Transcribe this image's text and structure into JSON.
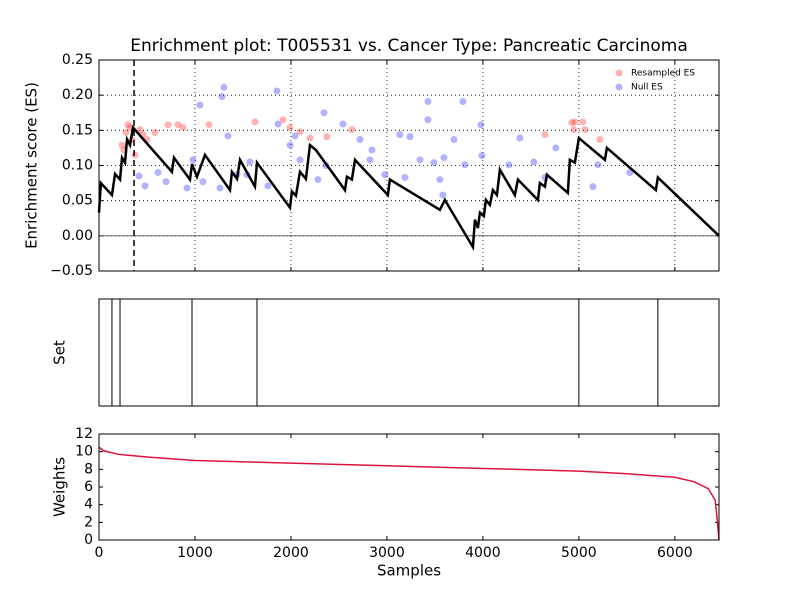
{
  "chart_data": [
    {
      "type": "line",
      "title": "Enrichment plot: T005531 vs. Cancer Type: Pancreatic Carcinoma",
      "ylabel": "Enrichment score (ES)",
      "x": [
        0,
        20,
        135,
        167,
        219,
        240,
        271,
        292,
        323,
        354,
        760,
        781,
        948,
        969,
        1021,
        1104,
        1365,
        1385,
        1438,
        1469,
        1625,
        1646,
        1990,
        2010,
        2052,
        2094,
        2156,
        2198,
        2260,
        2563,
        2583,
        2635,
        2667,
        3010,
        3031,
        3552,
        3604,
        3896,
        3917,
        3948,
        3969,
        4010,
        4031,
        4073,
        4104,
        4146,
        4177,
        4333,
        4365,
        4573,
        4594,
        4646,
        4667,
        4885,
        4906,
        4958,
        5000,
        5271,
        5292,
        5802,
        5823,
        6460
      ],
      "values": [
        0.033,
        0.075,
        0.058,
        0.088,
        0.08,
        0.111,
        0.104,
        0.137,
        0.129,
        0.154,
        0.091,
        0.111,
        0.08,
        0.102,
        0.084,
        0.115,
        0.065,
        0.091,
        0.081,
        0.108,
        0.07,
        0.104,
        0.04,
        0.063,
        0.057,
        0.091,
        0.081,
        0.129,
        0.122,
        0.065,
        0.084,
        0.08,
        0.108,
        0.058,
        0.08,
        0.037,
        0.051,
        -0.016,
        0.023,
        0.011,
        0.033,
        0.028,
        0.051,
        0.044,
        0.065,
        0.058,
        0.094,
        0.058,
        0.08,
        0.051,
        0.075,
        0.07,
        0.087,
        0.061,
        0.108,
        0.104,
        0.139,
        0.108,
        0.125,
        0.065,
        0.083,
        0.0
      ],
      "color": "#000000",
      "scatter": [
        {
          "name": "Resampled ES",
          "color": "#ff0000",
          "x": [
            260,
            281,
            302,
            323,
            344,
            240,
            375,
            427,
            458,
            500,
            583,
            719,
            823,
            875,
            1146,
            1625,
            1917,
            1990,
            2094,
            2198,
            2375,
            2635,
            4646,
            4927,
            4948,
            4958,
            5042,
            5063,
            5219
          ],
          "values": [
            0.122,
            0.147,
            0.158,
            0.154,
            0.137,
            0.129,
            0.115,
            0.151,
            0.144,
            0.137,
            0.147,
            0.158,
            0.158,
            0.154,
            0.158,
            0.162,
            0.165,
            0.154,
            0.148,
            0.139,
            0.141,
            0.151,
            0.144,
            0.161,
            0.151,
            0.162,
            0.162,
            0.151,
            0.137
          ]
        },
        {
          "name": "Null ES",
          "color": "#0000ff",
          "x": [
            1052,
            1281,
            1302,
            1854,
            3427,
            3792,
            3979,
            2344,
            1344,
            1865,
            2042,
            2542,
            3135,
            3240,
            3427,
            3594,
            3490,
            4385,
            4760,
            5198,
            417,
            479,
            615,
            698,
            917,
            1083,
            1260,
            1542,
            1760,
            1573,
            2094,
            2281,
            2365,
            2844,
            2823,
            2979,
            3188,
            3344,
            3552,
            3583,
            3813,
            3990,
            4271,
            4531,
            4646,
            5146,
            5531,
            979,
            1438,
            1990,
            2719,
            3698
          ],
          "values": [
            0.186,
            0.198,
            0.211,
            0.206,
            0.191,
            0.191,
            0.158,
            0.175,
            0.142,
            0.159,
            0.142,
            0.159,
            0.144,
            0.141,
            0.165,
            0.111,
            0.104,
            0.139,
            0.125,
            0.101,
            0.085,
            0.071,
            0.09,
            0.077,
            0.068,
            0.077,
            0.068,
            0.087,
            0.071,
            0.105,
            0.108,
            0.08,
            0.1,
            0.122,
            0.108,
            0.087,
            0.083,
            0.108,
            0.08,
            0.058,
            0.101,
            0.114,
            0.101,
            0.105,
            0.083,
            0.07,
            0.09,
            0.108,
            0.087,
            0.129,
            0.137,
            0.137
          ]
        }
      ],
      "vline": 365,
      "xlim": [
        0,
        6460
      ],
      "xticks": [
        1000,
        2000,
        3000,
        4000,
        5000,
        6000
      ],
      "show_xticklabels": false,
      "ylim": [
        -0.05,
        0.25
      ],
      "yticks": [
        {
          "value": -0.05,
          "label": "−0.05"
        },
        {
          "value": 0,
          "label": "0.00"
        },
        0.05,
        {
          "value": 0.1,
          "label": "0.10"
        },
        0.15,
        {
          "value": 0.2,
          "label": "0.20"
        },
        0.25
      ],
      "grid": true,
      "legend": "upper right"
    },
    {
      "type": "events",
      "ylabel": "Set",
      "x": [
        135,
        219,
        969,
        1646,
        5000,
        5823
      ],
      "color": "#000000",
      "xlim": [
        0,
        6460
      ]
    },
    {
      "type": "line",
      "xlabel": "Samples",
      "ylabel": "Weights",
      "x": [
        0,
        50,
        200,
        500,
        1000,
        2000,
        3000,
        4000,
        5000,
        5500,
        6000,
        6200,
        6350,
        6420,
        6440,
        6460
      ],
      "values": [
        10.5,
        10.1,
        9.7,
        9.4,
        9.0,
        8.7,
        8.4,
        8.1,
        7.8,
        7.5,
        7.1,
        6.6,
        5.8,
        4.5,
        2.5,
        0
      ],
      "color": "#dc143c",
      "xlim": [
        0,
        6460
      ],
      "xticks": [
        0,
        1000,
        2000,
        3000,
        4000,
        5000,
        6000
      ],
      "ylim": [
        0,
        12
      ],
      "yticks": [
        0,
        2,
        4,
        6,
        8,
        10,
        12
      ],
      "grid": false
    }
  ]
}
